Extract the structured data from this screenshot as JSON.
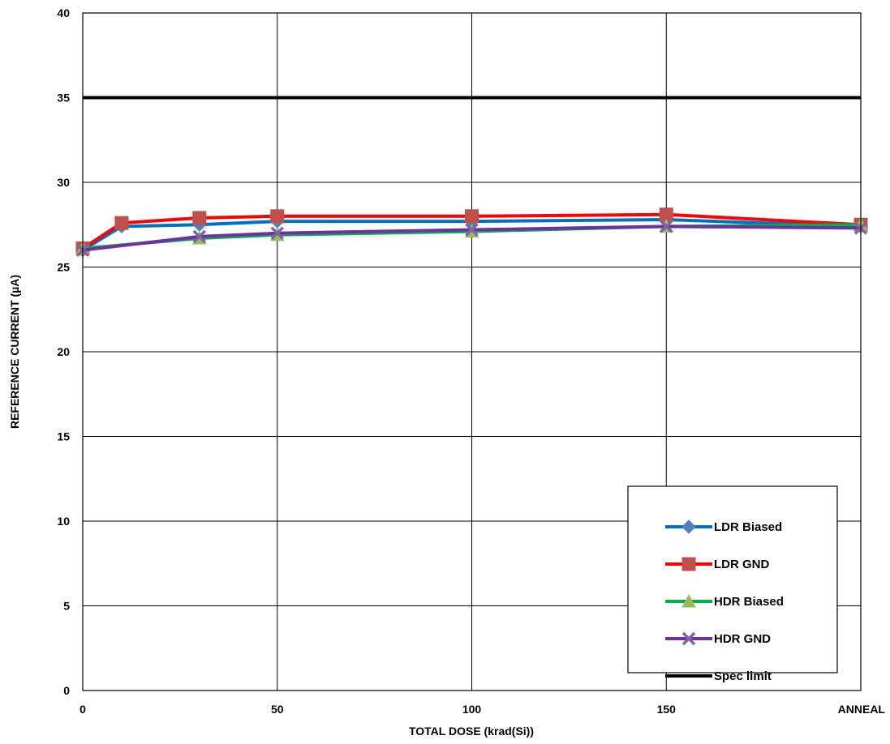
{
  "chart_data": {
    "type": "line",
    "xlabel": "TOTAL DOSE (krad(Si))",
    "ylabel": "REFERENCE CURRENT (µA)",
    "xlim": [
      0,
      200
    ],
    "ylim": [
      0,
      40
    ],
    "x_ticks": [
      {
        "value": 0,
        "label": "0"
      },
      {
        "value": 50,
        "label": "50"
      },
      {
        "value": 100,
        "label": "100"
      },
      {
        "value": 150,
        "label": "150"
      },
      {
        "value": 200,
        "label": "ANNEAL"
      }
    ],
    "y_ticks": [
      0,
      5,
      10,
      15,
      20,
      25,
      30,
      35,
      40
    ],
    "grid": true,
    "legend_position": "bottom-right",
    "series": [
      {
        "name": "LDR Biased",
        "color": "#0070C0",
        "marker": "diamond",
        "x": [
          0,
          10,
          30,
          50,
          100,
          150,
          200
        ],
        "y": [
          26.0,
          27.4,
          27.5,
          27.7,
          27.7,
          27.8,
          27.4
        ]
      },
      {
        "name": "LDR GND",
        "color": "#FF0000",
        "marker": "square",
        "x": [
          0,
          10,
          30,
          50,
          100,
          150,
          200
        ],
        "y": [
          26.1,
          27.6,
          27.9,
          28.0,
          28.0,
          28.1,
          27.5
        ]
      },
      {
        "name": "HDR Biased",
        "color": "#00B050",
        "marker": "triangle",
        "x": [
          0,
          30,
          50,
          100,
          150,
          200
        ],
        "y": [
          26.1,
          26.7,
          26.9,
          27.1,
          27.4,
          27.5
        ]
      },
      {
        "name": "HDR GND",
        "color": "#7030A0",
        "marker": "x",
        "x": [
          0,
          30,
          50,
          100,
          150,
          200
        ],
        "y": [
          26.0,
          26.8,
          27.0,
          27.2,
          27.4,
          27.3
        ]
      },
      {
        "name": "Spec limit",
        "color": "#000000",
        "marker": "none",
        "x": [
          0,
          200
        ],
        "y": [
          35,
          35
        ]
      }
    ]
  }
}
